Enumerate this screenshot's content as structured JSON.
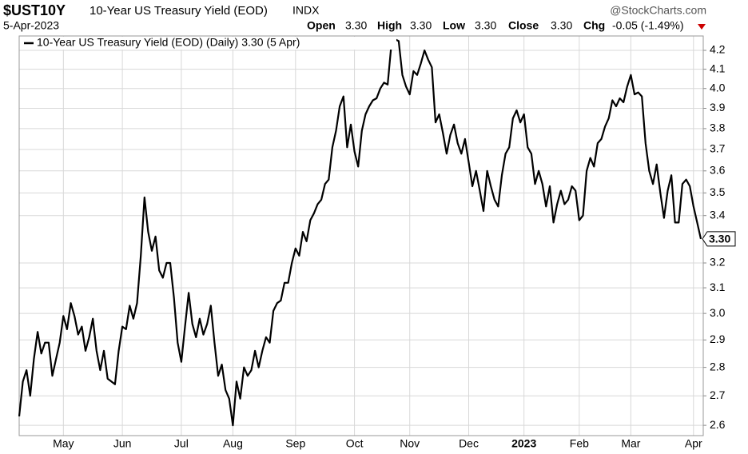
{
  "header": {
    "symbol": "$UST10Y",
    "name": "10-Year US Treasury Yield (EOD)",
    "exchange": "INDX",
    "date": "5-Apr-2023",
    "credit": "@StockCharts.com",
    "open_label": "Open",
    "open": "3.30",
    "high_label": "High",
    "high": "3.30",
    "low_label": "Low",
    "low": "3.30",
    "close_label": "Close",
    "close": "3.30",
    "chg_label": "Chg",
    "chg": "-0.05 (-1.49%)"
  },
  "chart_data": {
    "type": "line",
    "log_scale": true,
    "grid": true,
    "series": [
      {
        "name": "10-Year US Treasury Yield (EOD) (Daily) 3.30 (5 Apr)",
        "color": "#000000",
        "values": [
          2.63,
          2.75,
          2.79,
          2.7,
          2.83,
          2.93,
          2.85,
          2.89,
          2.89,
          2.77,
          2.83,
          2.89,
          2.99,
          2.94,
          3.04,
          2.99,
          2.92,
          2.95,
          2.86,
          2.91,
          2.98,
          2.86,
          2.79,
          2.86,
          2.76,
          2.75,
          2.74,
          2.86,
          2.95,
          2.94,
          3.03,
          2.98,
          3.04,
          3.23,
          3.48,
          3.33,
          3.25,
          3.31,
          3.17,
          3.14,
          3.2,
          3.2,
          3.06,
          2.89,
          2.82,
          2.95,
          3.08,
          2.96,
          2.91,
          2.98,
          2.92,
          2.96,
          3.03,
          2.89,
          2.77,
          2.81,
          2.72,
          2.69,
          2.6,
          2.75,
          2.69,
          2.8,
          2.77,
          2.79,
          2.86,
          2.8,
          2.86,
          2.91,
          2.89,
          3.01,
          3.04,
          3.05,
          3.12,
          3.12,
          3.2,
          3.26,
          3.23,
          3.33,
          3.29,
          3.38,
          3.41,
          3.45,
          3.47,
          3.54,
          3.56,
          3.71,
          3.79,
          3.91,
          3.96,
          3.71,
          3.82,
          3.69,
          3.62,
          3.79,
          3.87,
          3.91,
          3.94,
          3.95,
          4.0,
          4.03,
          4.02,
          4.23,
          4.26,
          4.25,
          4.07,
          4.01,
          3.97,
          4.09,
          4.07,
          4.13,
          4.2,
          4.15,
          4.11,
          3.83,
          3.87,
          3.78,
          3.68,
          3.77,
          3.82,
          3.73,
          3.68,
          3.75,
          3.64,
          3.53,
          3.6,
          3.51,
          3.42,
          3.6,
          3.53,
          3.47,
          3.44,
          3.58,
          3.68,
          3.71,
          3.85,
          3.89,
          3.83,
          3.87,
          3.71,
          3.68,
          3.54,
          3.6,
          3.54,
          3.44,
          3.53,
          3.37,
          3.45,
          3.51,
          3.45,
          3.47,
          3.53,
          3.51,
          3.38,
          3.4,
          3.6,
          3.66,
          3.62,
          3.73,
          3.75,
          3.81,
          3.85,
          3.94,
          3.91,
          3.95,
          3.93,
          4.01,
          4.07,
          3.97,
          3.98,
          3.96,
          3.73,
          3.6,
          3.54,
          3.63,
          3.5,
          3.39,
          3.51,
          3.58,
          3.37,
          3.37,
          3.54,
          3.56,
          3.53,
          3.44,
          3.37,
          3.3
        ]
      }
    ],
    "categories": [
      null,
      null,
      null,
      null,
      null,
      null,
      null,
      null,
      null,
      null,
      null,
      null,
      "May",
      null,
      null,
      null,
      null,
      null,
      null,
      null,
      null,
      null,
      null,
      null,
      null,
      null,
      null,
      null,
      "Jun",
      null,
      null,
      null,
      null,
      null,
      null,
      null,
      null,
      null,
      null,
      null,
      null,
      null,
      null,
      null,
      "Jul",
      null,
      null,
      null,
      null,
      null,
      null,
      null,
      null,
      null,
      null,
      null,
      null,
      null,
      "Aug",
      null,
      null,
      null,
      null,
      null,
      null,
      null,
      null,
      null,
      null,
      null,
      null,
      null,
      null,
      null,
      null,
      "Sep",
      null,
      null,
      null,
      null,
      null,
      null,
      null,
      null,
      null,
      null,
      null,
      null,
      null,
      null,
      null,
      "Oct",
      null,
      null,
      null,
      null,
      null,
      null,
      null,
      null,
      null,
      null,
      null,
      null,
      null,
      null,
      "Nov",
      null,
      null,
      null,
      null,
      null,
      null,
      null,
      null,
      null,
      null,
      null,
      null,
      null,
      null,
      null,
      "Dec",
      null,
      null,
      null,
      null,
      null,
      null,
      null,
      null,
      null,
      null,
      null,
      null,
      null,
      null,
      "2023",
      null,
      null,
      null,
      null,
      null,
      null,
      null,
      null,
      null,
      null,
      null,
      null,
      null,
      null,
      "Feb",
      null,
      null,
      null,
      null,
      null,
      null,
      null,
      null,
      null,
      null,
      null,
      null,
      null,
      "Mar",
      null,
      null,
      null,
      null,
      null,
      null,
      null,
      null,
      null,
      null,
      null,
      null,
      null,
      null,
      null,
      null,
      "Apr",
      null,
      null
    ],
    "ylim": [
      2.566,
      4.278
    ],
    "yticks": [
      2.6,
      2.7,
      2.8,
      2.9,
      {
        "value": 3,
        "label": "3.0"
      },
      3.1,
      3.2,
      3.4,
      3.5,
      3.6,
      3.7,
      3.8,
      3.9,
      {
        "value": 4,
        "label": "4.0"
      },
      4.1,
      4.2
    ],
    "end_label": {
      "value": 3.3,
      "label": "3.30"
    }
  }
}
